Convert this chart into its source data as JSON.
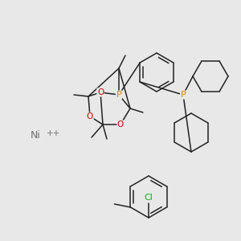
{
  "background_color": "#e8e8e8",
  "atom_colors": {
    "P": "#cc8800",
    "O": "#cc0000",
    "Cl": "#00bb00",
    "Ni": "#707070"
  },
  "line_color": "#222222",
  "line_width": 1.1
}
